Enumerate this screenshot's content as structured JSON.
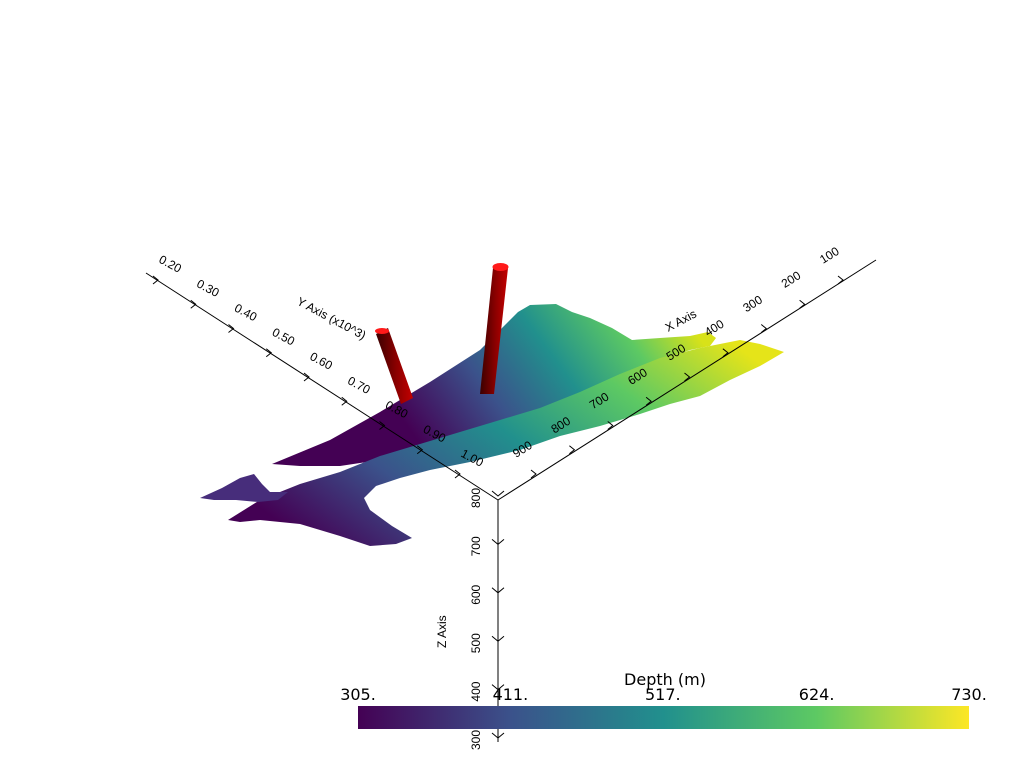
{
  "colors": {
    "well": "#c40000",
    "well_dark": "#5a0000",
    "well_top": "#ff1a1a",
    "axis": "#000000",
    "background": "#ffffff",
    "colormap": [
      "#440154",
      "#3b528b",
      "#21908d",
      "#5dc963",
      "#fde725"
    ]
  },
  "chart_data": {
    "type": "surface",
    "colorbar": {
      "title": "Depth (m)",
      "min": 305,
      "max": 730,
      "labels": [
        "305.",
        "411.",
        "517.",
        "624.",
        "730."
      ],
      "colormap": "viridis",
      "placement": "bottom-right"
    },
    "x_axis": {
      "title": "X Axis",
      "ticks": [
        "100",
        "200",
        "300",
        "400",
        "500",
        "600",
        "700",
        "800",
        "900"
      ],
      "range": [
        100,
        900
      ]
    },
    "y_axis": {
      "title": "Y Axis (x10^3)",
      "ticks": [
        "0.20",
        "0.30",
        "0.40",
        "0.50",
        "0.60",
        "0.70",
        "0.80",
        "0.90",
        "1.00"
      ],
      "range": [
        0.2,
        1.0
      ]
    },
    "z_axis": {
      "title": "Z Axis",
      "ticks": [
        "300",
        "400",
        "500",
        "600",
        "700",
        "800"
      ],
      "range": [
        300,
        800
      ]
    },
    "objects": [
      "upper depth surface",
      "lower depth surface",
      "well 1",
      "well 2"
    ]
  }
}
